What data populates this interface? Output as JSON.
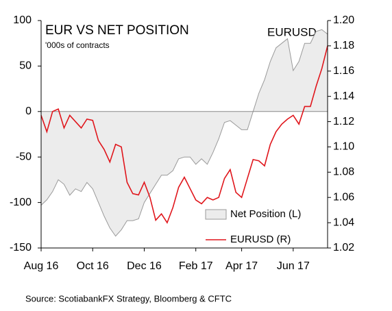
{
  "chart_data": {
    "type": "area",
    "title": "EUR VS NET POSITION",
    "subtitle": "'000s of contracts",
    "annotation": "EURUSD",
    "source": "Source: ScotiabankFX Strategy, Bloomberg & CFTC",
    "categories": [
      "Aug 16",
      null,
      null,
      null,
      null,
      null,
      null,
      null,
      null,
      "Oct 16",
      null,
      null,
      null,
      null,
      null,
      null,
      null,
      null,
      "Dec 16",
      null,
      null,
      null,
      null,
      null,
      null,
      null,
      null,
      "Feb 17",
      null,
      null,
      null,
      null,
      null,
      null,
      null,
      "Apr 17",
      null,
      null,
      null,
      null,
      null,
      null,
      null,
      null,
      "Jun 17",
      null,
      null,
      null,
      null,
      null,
      null
    ],
    "series": [
      {
        "name": "Net Position (L)",
        "type": "area",
        "color": "#ececec",
        "edge": "#999999",
        "values": [
          -103,
          -97,
          -88,
          -75,
          -80,
          -92,
          -85,
          -88,
          -78,
          -85,
          -100,
          -115,
          -128,
          -137,
          -130,
          -120,
          -120,
          -118,
          -100,
          -90,
          -80,
          -70,
          -70,
          -65,
          -52,
          -50,
          -50,
          -58,
          -52,
          -58,
          -45,
          -30,
          -12,
          -10,
          -15,
          -20,
          -20,
          0,
          20,
          35,
          55,
          70,
          75,
          80,
          45,
          55,
          75,
          75,
          88,
          90,
          85
        ]
      },
      {
        "name": "EURUSD (R)",
        "type": "line",
        "color": "#e0151b",
        "axis": "y2",
        "values": [
          1.125,
          1.112,
          1.128,
          1.13,
          1.115,
          1.125,
          1.12,
          1.115,
          1.122,
          1.121,
          1.105,
          1.098,
          1.088,
          1.102,
          1.1,
          1.072,
          1.063,
          1.062,
          1.072,
          1.06,
          1.042,
          1.047,
          1.04,
          1.052,
          1.068,
          1.076,
          1.067,
          1.058,
          1.055,
          1.06,
          1.058,
          1.06,
          1.075,
          1.082,
          1.064,
          1.06,
          1.075,
          1.09,
          1.089,
          1.085,
          1.102,
          1.112,
          1.118,
          1.122,
          1.125,
          1.118,
          1.132,
          1.132,
          1.148,
          1.162,
          1.18
        ]
      }
    ],
    "ylim": [
      -150,
      100
    ],
    "yticks": [
      -150,
      -100,
      -50,
      0,
      50,
      100
    ],
    "y2lim": [
      1.02,
      1.2
    ],
    "y2ticks": [
      1.02,
      1.04,
      1.06,
      1.08,
      {
        "value": 1.1,
        "label": "1.10"
      },
      1.12,
      1.14,
      1.16,
      1.18,
      {
        "value": 1.2,
        "label": "1.20"
      }
    ],
    "grid": false
  }
}
